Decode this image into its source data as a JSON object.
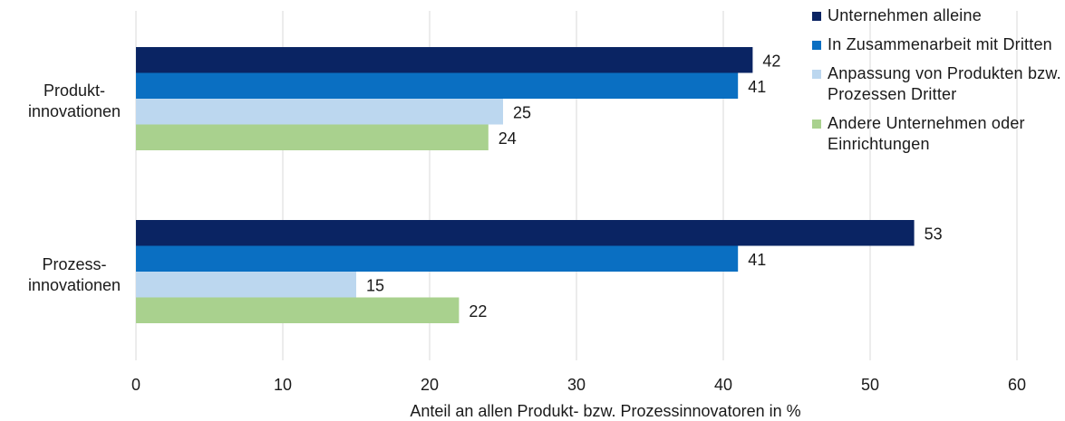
{
  "chart_data": {
    "type": "bar",
    "orientation": "horizontal",
    "categories": [
      "Produkt-\ninnovationen",
      "Prozess-\ninnovationen"
    ],
    "series": [
      {
        "name": "Unternehmen alleine",
        "color": "#0a2463",
        "values": [
          42,
          53
        ]
      },
      {
        "name": "In Zusammenarbeit mit Dritten",
        "color": "#0a6fc2",
        "values": [
          41,
          41
        ]
      },
      {
        "name": "Anpassung von Produkten bzw. Prozessen Dritter",
        "color": "#bcd7ef",
        "values": [
          25,
          15
        ]
      },
      {
        "name": "Andere Unternehmen oder Einrichtungen",
        "color": "#a9d18e",
        "values": [
          24,
          22
        ]
      }
    ],
    "bar_value_labels": [
      [
        42,
        41,
        25,
        24
      ],
      [
        53,
        41,
        15,
        22
      ]
    ],
    "xlim": [
      0,
      60
    ],
    "xticks": [
      0,
      10,
      20,
      30,
      40,
      50,
      60
    ],
    "xlabel": "Anteil an allen Produkt- bzw. Prozessinnovatoren  in %",
    "grid": "vertical",
    "legend_position": "right"
  },
  "legend": {
    "items": [
      {
        "label": "Unternehmen alleine",
        "color": "#0a2463"
      },
      {
        "label": "In Zusammenarbeit mit Dritten",
        "color": "#0a6fc2"
      },
      {
        "label": "Anpassung von Produkten bzw. Prozessen Dritter",
        "color": "#bcd7ef"
      },
      {
        "label": "Andere Unternehmen oder Einrichtungen",
        "color": "#a9d18e"
      }
    ]
  }
}
